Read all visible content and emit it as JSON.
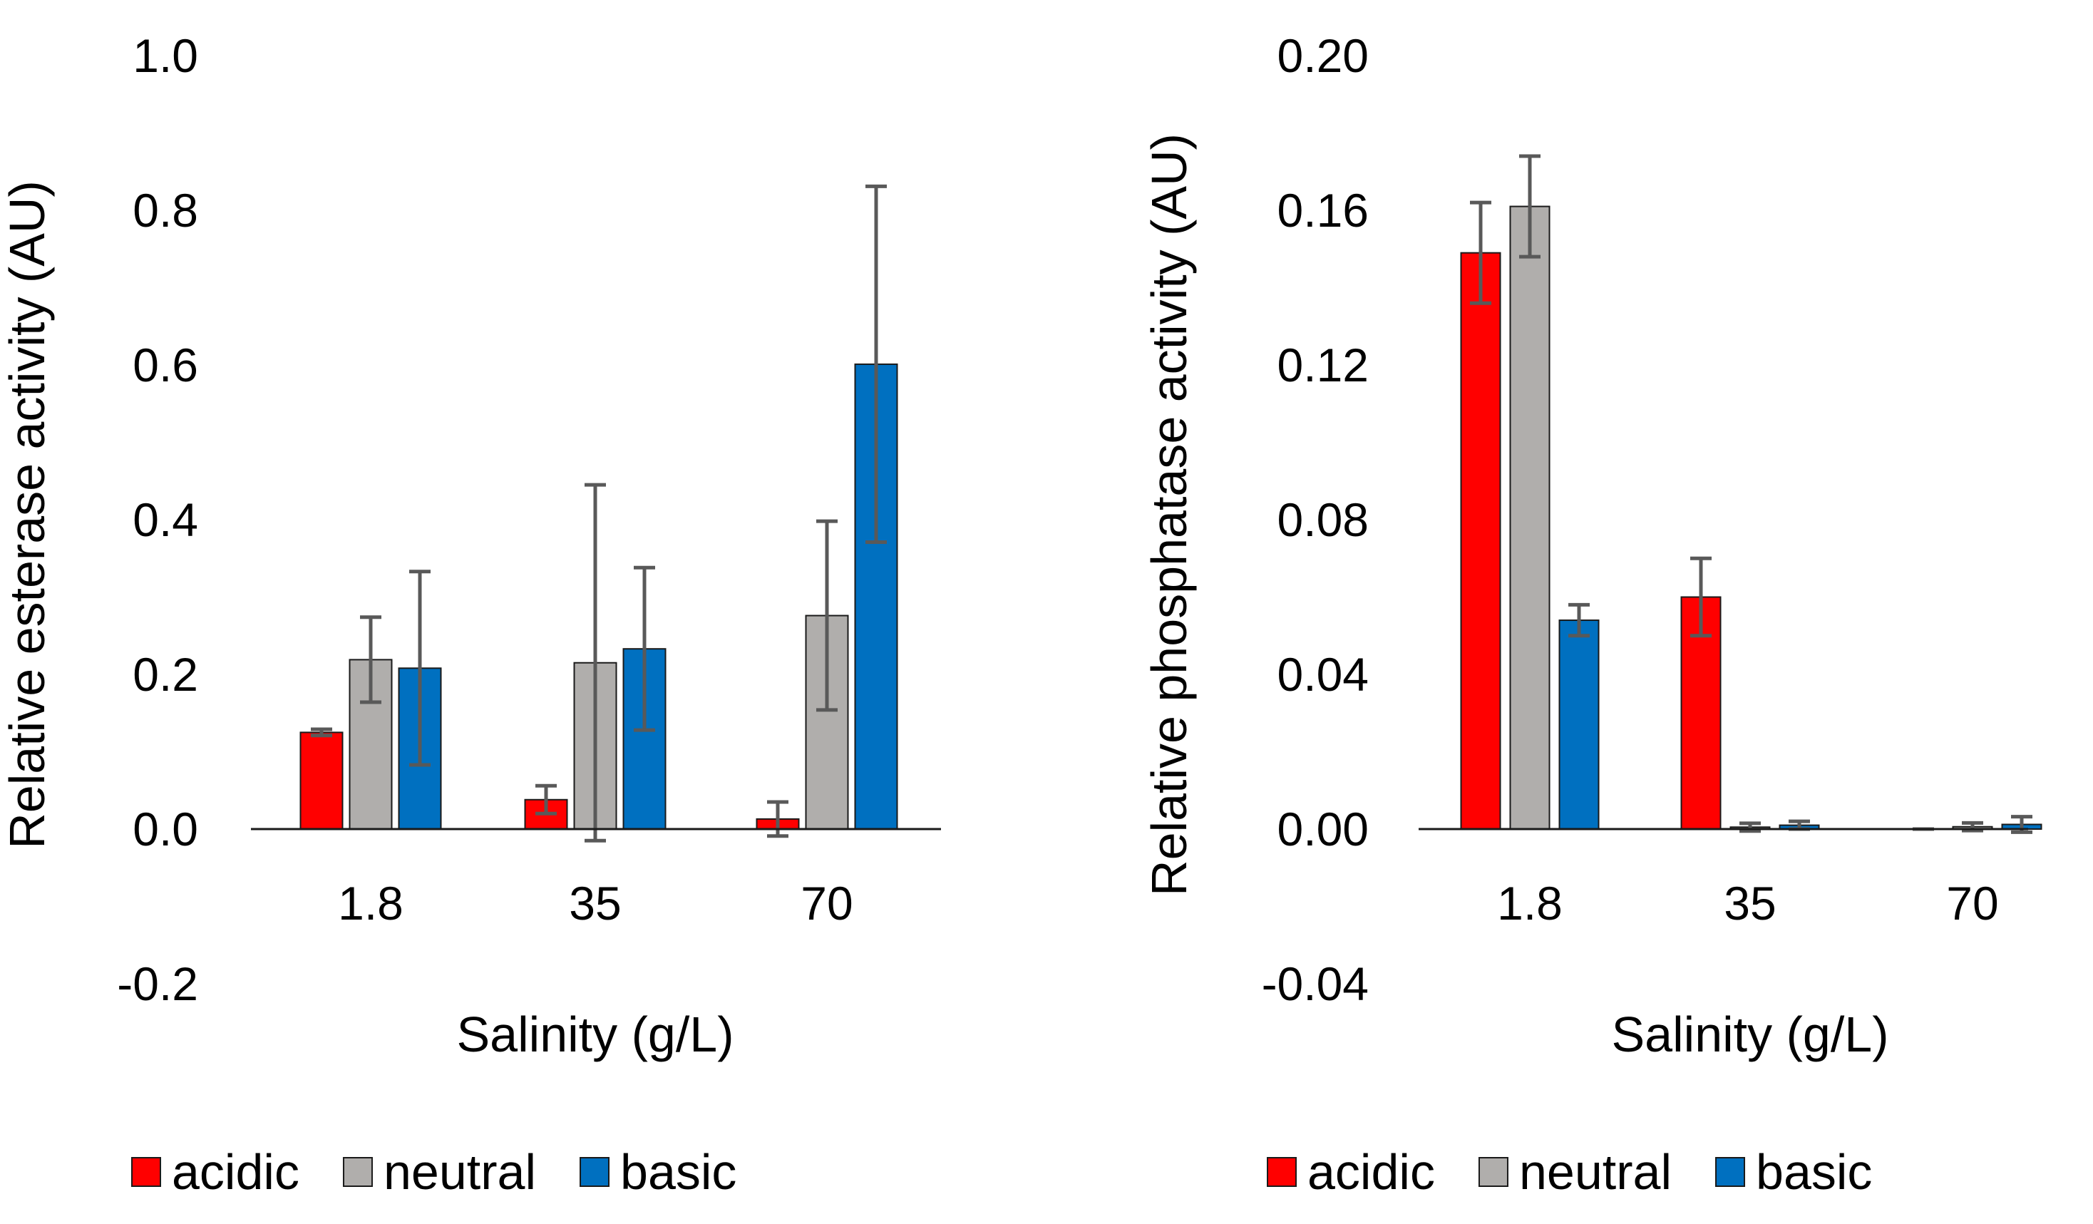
{
  "chart_data": [
    {
      "type": "bar",
      "title": "",
      "xlabel": "Salinity (g/L)",
      "ylabel": "Relative esterase activity (AU)",
      "categories": [
        "1.8",
        "35",
        "70"
      ],
      "ylim": [
        -0.2,
        1.0
      ],
      "yticks": [
        -0.2,
        0.0,
        0.2,
        0.4,
        0.6,
        0.8,
        1.0
      ],
      "ytick_labels": [
        "-0.2",
        "0.0",
        "0.2",
        "0.4",
        "0.6",
        "0.8",
        "1.0"
      ],
      "series": [
        {
          "name": "acidic",
          "color": "#ff0000",
          "values": [
            0.125,
            0.038,
            0.013
          ],
          "errors": [
            0.004,
            0.018,
            0.022
          ]
        },
        {
          "name": "neutral",
          "color": "#b0aeac",
          "values": [
            0.219,
            0.215,
            0.276
          ],
          "errors": [
            0.055,
            0.23,
            0.122
          ]
        },
        {
          "name": "basic",
          "color": "#0070c0",
          "values": [
            0.208,
            0.233,
            0.601
          ],
          "errors": [
            0.125,
            0.105,
            0.23
          ]
        }
      ],
      "legend": {
        "position": "bottom",
        "entries": [
          "acidic",
          "neutral",
          "basic"
        ]
      },
      "grid": false
    },
    {
      "type": "bar",
      "title": "",
      "xlabel": "Salinity (g/L)",
      "ylabel": "Relative phosphatase activity (AU)",
      "categories": [
        "1.8",
        "35",
        "70"
      ],
      "ylim": [
        -0.04,
        0.2
      ],
      "yticks": [
        -0.04,
        0.0,
        0.04,
        0.08,
        0.12,
        0.16,
        0.2
      ],
      "ytick_labels": [
        "-0.04",
        "0.00",
        "0.04",
        "0.08",
        "0.12",
        "0.16",
        "0.20"
      ],
      "series": [
        {
          "name": "acidic",
          "color": "#ff0000",
          "values": [
            0.149,
            0.06,
            0.0
          ],
          "errors": [
            0.013,
            0.01,
            0.0
          ]
        },
        {
          "name": "neutral",
          "color": "#b0aeac",
          "values": [
            0.161,
            0.0005,
            0.0006
          ],
          "errors": [
            0.013,
            0.001,
            0.001
          ]
        },
        {
          "name": "basic",
          "color": "#0070c0",
          "values": [
            0.054,
            0.001,
            0.0012
          ],
          "errors": [
            0.004,
            0.001,
            0.002
          ]
        }
      ],
      "legend": {
        "position": "bottom",
        "entries": [
          "acidic",
          "neutral",
          "basic"
        ]
      },
      "grid": false
    }
  ]
}
